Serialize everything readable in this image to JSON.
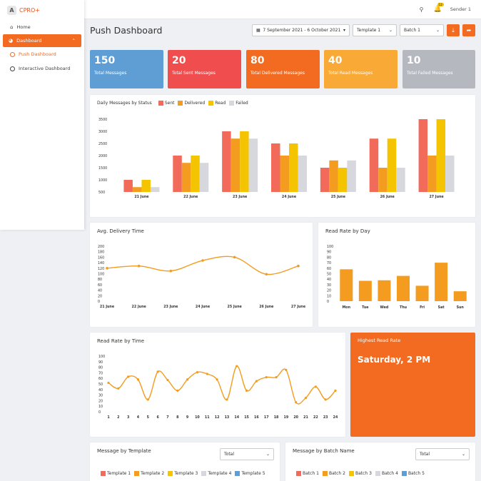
{
  "brand": "CPRO+",
  "nav": {
    "home": "Home",
    "dashboard": "Dashboard",
    "push_dashboard": "Push Dashboard",
    "interactive_dashboard": "Interactive Dashboard"
  },
  "topbar": {
    "notif_count": "12",
    "user": "Sender 1"
  },
  "page_title": "Push Dashboard",
  "filters": {
    "date_range": "7 September 2021 - 6 October 2021",
    "template": "Template 1",
    "batch": "Batch 1"
  },
  "cards": [
    {
      "value": "150",
      "label": "Total Messages",
      "color": "#5e9ed5"
    },
    {
      "value": "20",
      "label": "Total Sent Messages",
      "color": "#f04e4e"
    },
    {
      "value": "80",
      "label": "Total Delivered Messages",
      "color": "#f26b21"
    },
    {
      "value": "40",
      "label": "Total Read Messages",
      "color": "#f9a935"
    },
    {
      "value": "10",
      "label": "Total Failed Messages",
      "color": "#b5b8bf"
    }
  ],
  "daily_title": "Daily Messages by Status",
  "avg_title": "Avg. Delivery Time",
  "readday_title": "Read Rate by Day",
  "readtime_title": "Read Rate by Time",
  "highest": {
    "title": "Highest Read Rate",
    "value": "Saturday, 2 PM"
  },
  "template_panel": {
    "title": "Message by Template",
    "select": "Total",
    "legend": [
      "Template 1",
      "Template 2",
      "Template 3",
      "Template 4",
      "Template 5"
    ]
  },
  "batch_panel": {
    "title": "Message by Batch Name",
    "select": "Total",
    "legend": [
      "Batch 1",
      "Batch 2",
      "Batch 3",
      "Batch 4",
      "Batch 5"
    ]
  },
  "legend_colors": [
    "#f26b5a",
    "#f39c1f",
    "#f5c400",
    "#d6d8dd",
    "#5e9ed5"
  ],
  "chart_data": [
    {
      "type": "bar",
      "title": "Daily Messages by Status",
      "categories": [
        "21 June",
        "22 June",
        "23 June",
        "24 June",
        "25 June",
        "26 June",
        "27 June"
      ],
      "yticks": [
        "3500",
        "3000",
        "2500",
        "2000",
        "1500",
        "1000",
        "500"
      ],
      "ylim": [
        500,
        3500
      ],
      "series": [
        {
          "name": "Sent",
          "color": "#f26b5a",
          "values": [
            1000,
            2000,
            3000,
            2500,
            1500,
            2700,
            3500
          ]
        },
        {
          "name": "Delivered",
          "color": "#f39c1f",
          "values": [
            700,
            1700,
            2700,
            2000,
            1800,
            1500,
            2000
          ]
        },
        {
          "name": "Read",
          "color": "#f5c400",
          "values": [
            1000,
            2000,
            3000,
            2500,
            1500,
            2700,
            3500
          ]
        },
        {
          "name": "Failed",
          "color": "#d6d8dd",
          "values": [
            700,
            1700,
            2700,
            2000,
            1800,
            1500,
            2000
          ]
        }
      ]
    },
    {
      "type": "line",
      "title": "Avg. Delivery Time",
      "categories": [
        "21 June",
        "22 June",
        "23 June",
        "24 June",
        "25 June",
        "26 June",
        "27 June"
      ],
      "yticks": [
        "200",
        "180",
        "160",
        "140",
        "120",
        "100",
        "80",
        "60",
        "40",
        "20",
        "0"
      ],
      "ylim": [
        0,
        200
      ],
      "values": [
        120,
        128,
        110,
        148,
        160,
        98,
        128
      ],
      "color": "#f39c1f"
    },
    {
      "type": "bar",
      "title": "Read Rate by Day",
      "categories": [
        "Mon",
        "Tue",
        "Wed",
        "Thu",
        "Fri",
        "Sat",
        "Sun"
      ],
      "yticks": [
        "100",
        "90",
        "80",
        "70",
        "60",
        "50",
        "40",
        "30",
        "20",
        "10",
        "0"
      ],
      "ylim": [
        0,
        100
      ],
      "values": [
        58,
        37,
        38,
        46,
        28,
        70,
        18
      ],
      "color": "#f39c1f"
    },
    {
      "type": "line",
      "title": "Read Rate by Time",
      "categories": [
        "1",
        "2",
        "3",
        "4",
        "5",
        "6",
        "7",
        "8",
        "9",
        "10",
        "11",
        "12",
        "13",
        "14",
        "15",
        "16",
        "17",
        "18",
        "19",
        "20",
        "21",
        "22",
        "23",
        "24"
      ],
      "yticks": [
        "100",
        "90",
        "80",
        "70",
        "60",
        "50",
        "40",
        "30",
        "20",
        "10",
        "0"
      ],
      "ylim": [
        0,
        100
      ],
      "values": [
        52,
        42,
        63,
        58,
        22,
        72,
        57,
        38,
        58,
        71,
        68,
        58,
        22,
        82,
        38,
        55,
        62,
        62,
        75,
        17,
        25,
        45,
        22,
        38
      ],
      "color": "#f39c1f"
    }
  ]
}
